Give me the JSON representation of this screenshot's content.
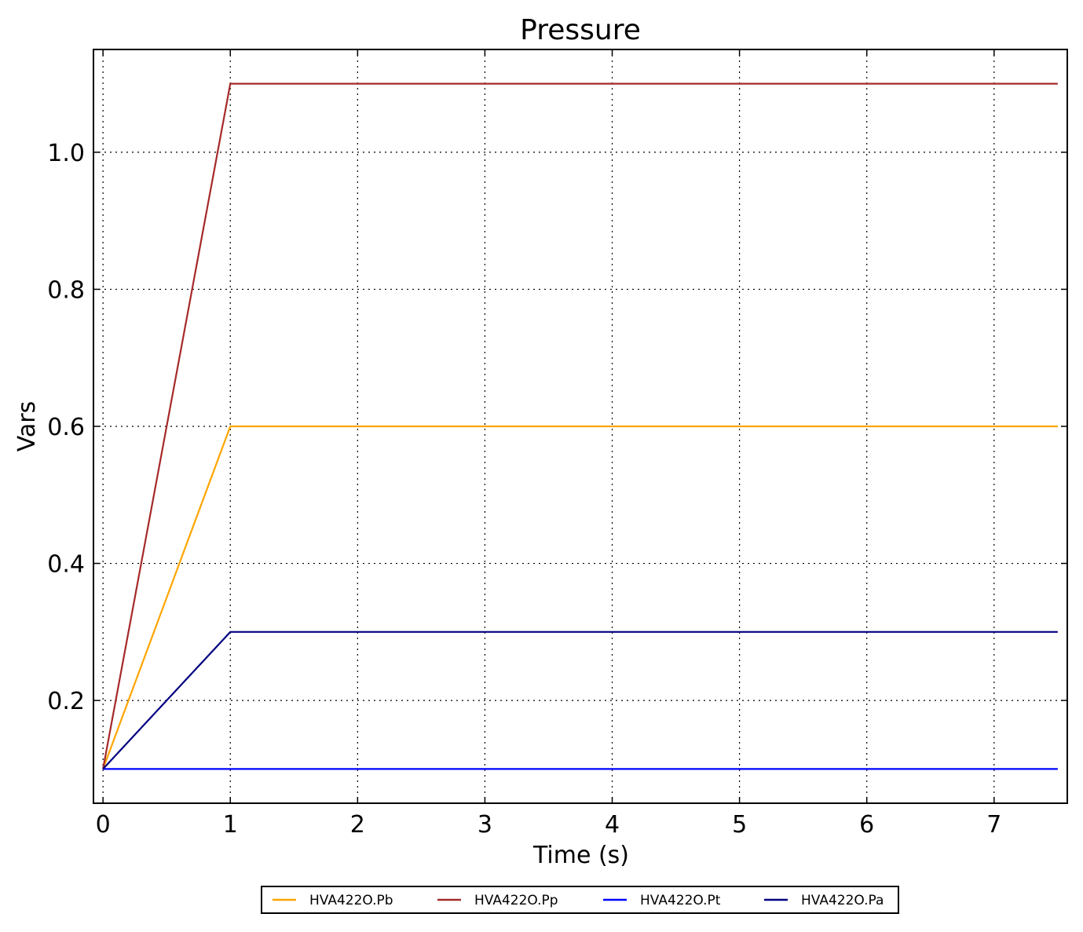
{
  "chart_data": {
    "type": "line",
    "title": "Pressure",
    "xlabel": "Time (s)",
    "ylabel": "Vars",
    "xlim": [
      -0.075,
      7.575
    ],
    "ylim": [
      0.05,
      1.15
    ],
    "xticks": [
      0,
      1,
      2,
      3,
      4,
      5,
      6,
      7
    ],
    "xtick_labels": [
      "0",
      "1",
      "2",
      "3",
      "4",
      "5",
      "6",
      "7"
    ],
    "yticks": [
      0.2,
      0.4,
      0.6,
      0.8,
      1.0
    ],
    "ytick_labels": [
      "0.2",
      "0.4",
      "0.6",
      "0.8",
      "1.0"
    ],
    "grid": true,
    "legend_placement": "bottom-center-outside",
    "series": [
      {
        "name": "HVA422O.Pb",
        "color": "#ffa500",
        "x": [
          0,
          1,
          7.5
        ],
        "y": [
          0.1,
          0.6,
          0.6
        ]
      },
      {
        "name": "HVA422O.Pp",
        "color": "#a52a2a",
        "x": [
          0,
          1,
          7.5
        ],
        "y": [
          0.1,
          1.1,
          1.1
        ]
      },
      {
        "name": "HVA422O.Pt",
        "color": "#0000ff",
        "x": [
          0,
          1,
          7.5
        ],
        "y": [
          0.1,
          0.1,
          0.1
        ]
      },
      {
        "name": "HVA422O.Pa",
        "color": "#000080",
        "x": [
          0,
          1,
          7.5
        ],
        "y": [
          0.1,
          0.3,
          0.3
        ]
      }
    ]
  }
}
